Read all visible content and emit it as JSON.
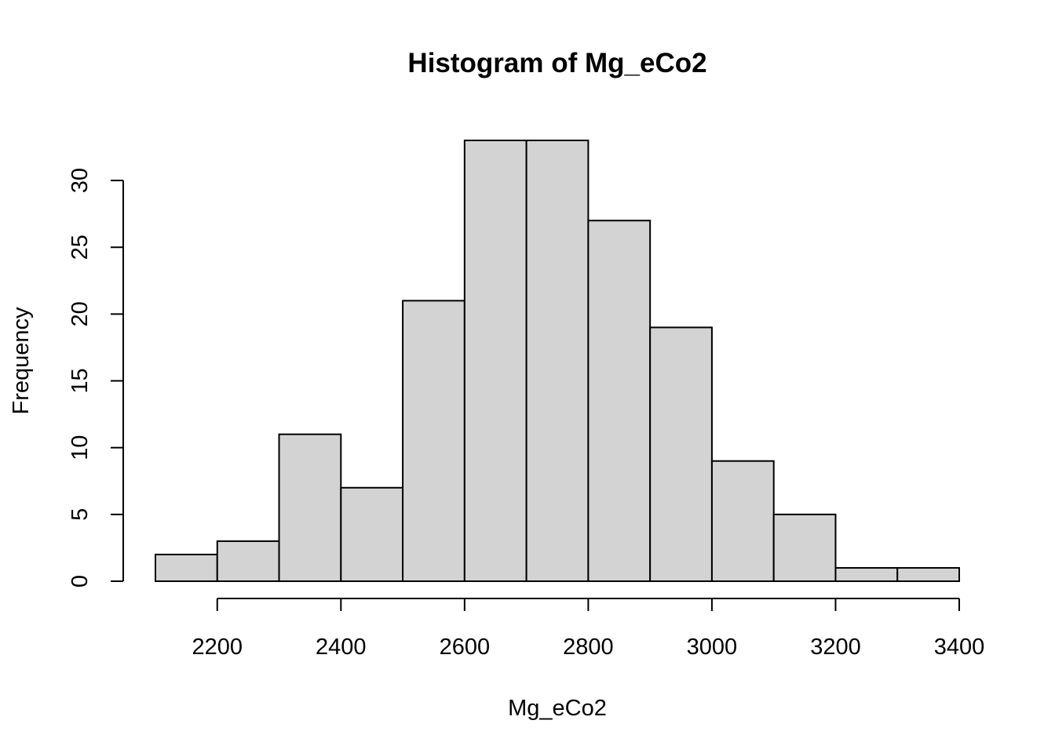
{
  "chart_data": {
    "type": "bar",
    "title": "Histogram of Mg_eCo2",
    "xlabel": "Mg_eCo2",
    "ylabel": "Frequency",
    "bins": [
      {
        "start": 2100,
        "end": 2200,
        "count": 2
      },
      {
        "start": 2200,
        "end": 2300,
        "count": 3
      },
      {
        "start": 2300,
        "end": 2400,
        "count": 11
      },
      {
        "start": 2400,
        "end": 2500,
        "count": 7
      },
      {
        "start": 2500,
        "end": 2600,
        "count": 21
      },
      {
        "start": 2600,
        "end": 2700,
        "count": 33
      },
      {
        "start": 2700,
        "end": 2800,
        "count": 33
      },
      {
        "start": 2800,
        "end": 2900,
        "count": 27
      },
      {
        "start": 2900,
        "end": 3000,
        "count": 19
      },
      {
        "start": 3000,
        "end": 3100,
        "count": 9
      },
      {
        "start": 3100,
        "end": 3200,
        "count": 5
      },
      {
        "start": 3200,
        "end": 3300,
        "count": 1
      },
      {
        "start": 3300,
        "end": 3400,
        "count": 1
      }
    ],
    "xticks": [
      2200,
      2400,
      2600,
      2800,
      3000,
      3200,
      3400
    ],
    "yticks": [
      0,
      5,
      10,
      15,
      20,
      25,
      30
    ],
    "xlim": [
      2100,
      3400
    ],
    "ylim": [
      0,
      33
    ],
    "grid": false,
    "bar_color": "#d3d3d3",
    "edge_color": "#000000"
  }
}
